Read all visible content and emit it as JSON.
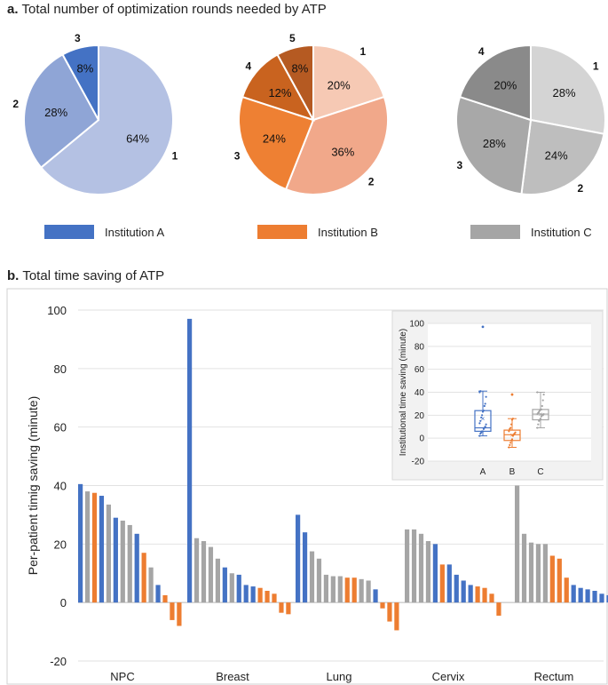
{
  "panel_a": {
    "label": "a.",
    "title": "Total number of optimization rounds needed by ATP"
  },
  "panel_b": {
    "label": "b.",
    "title": "Total time saving of ATP"
  },
  "colors": {
    "A": "#4472C4",
    "B": "#ED7D31",
    "C": "#A5A5A5",
    "pieA": [
      "#B4C1E3",
      "#8FA5D6",
      "#4472C4"
    ],
    "pieB": [
      "#F6C9B4",
      "#F1A88A",
      "#EE8033",
      "#C9631F",
      "#B55A22"
    ],
    "pieC": [
      "#D4D4D4",
      "#BEBEBE",
      "#A8A8A8",
      "#8A8A8A"
    ]
  },
  "chart_data": [
    {
      "type": "pie",
      "name": "Institution A",
      "labels": [
        "1",
        "2",
        "3"
      ],
      "values": [
        64,
        28,
        8
      ],
      "value_labels": [
        "64%",
        "28%",
        "8%"
      ]
    },
    {
      "type": "pie",
      "name": "Institution B",
      "labels": [
        "1",
        "2",
        "3",
        "4",
        "5"
      ],
      "values": [
        20,
        36,
        24,
        12,
        8
      ],
      "value_labels": [
        "20%",
        "36%",
        "24%",
        "12%",
        "8%"
      ]
    },
    {
      "type": "pie",
      "name": "Institution C",
      "labels": [
        "1",
        "2",
        "3",
        "4"
      ],
      "values": [
        28,
        24,
        28,
        20
      ],
      "value_labels": [
        "28%",
        "24%",
        "28%",
        "20%"
      ]
    },
    {
      "type": "bar",
      "ylabel": "Per-patient timig saving (minute)",
      "ylim": [
        -20,
        100
      ],
      "yticks": [
        "100",
        "80",
        "60",
        "40",
        "20",
        "0",
        "-20"
      ],
      "categories": [
        "NPC",
        "Breast",
        "Lung",
        "Cervix",
        "Rectum"
      ],
      "groups": [
        {
          "name": "NPC",
          "values": [
            40.5,
            38,
            37.5,
            36.5,
            33.5,
            29,
            28,
            26.5,
            23.5,
            17,
            12,
            6,
            2.5,
            -6,
            -8
          ],
          "inst": [
            "A",
            "C",
            "B",
            "A",
            "C",
            "A",
            "C",
            "C",
            "A",
            "B",
            "C",
            "A",
            "B",
            "B",
            "B"
          ]
        },
        {
          "name": "Breast",
          "values": [
            97,
            22,
            21,
            19,
            15,
            12,
            10,
            9.5,
            6,
            5.5,
            5,
            4,
            3,
            -3.5,
            -4
          ],
          "inst": [
            "A",
            "C",
            "C",
            "C",
            "C",
            "A",
            "C",
            "A",
            "A",
            "A",
            "B",
            "B",
            "B",
            "B",
            "B"
          ]
        },
        {
          "name": "Lung",
          "values": [
            30,
            24,
            17.5,
            15,
            9.5,
            9,
            9,
            8.5,
            8.5,
            8,
            7.5,
            4.5,
            -2,
            -6.5,
            -9.5
          ],
          "inst": [
            "A",
            "A",
            "C",
            "C",
            "C",
            "C",
            "C",
            "B",
            "B",
            "C",
            "C",
            "A",
            "B",
            "B",
            "B"
          ]
        },
        {
          "name": "Cervix",
          "values": [
            25,
            25,
            23.5,
            21,
            20,
            13,
            13,
            9.5,
            7.5,
            6,
            5.5,
            5,
            3,
            -4.5
          ],
          "inst": [
            "C",
            "C",
            "C",
            "C",
            "A",
            "B",
            "A",
            "A",
            "A",
            "A",
            "B",
            "B",
            "B",
            "B"
          ]
        },
        {
          "name": "Rectum",
          "values": [
            40,
            23.5,
            20.5,
            20,
            20,
            16,
            15,
            8.5,
            6,
            5,
            4.5,
            4,
            3,
            2.5,
            2,
            1.5
          ],
          "inst": [
            "C",
            "C",
            "C",
            "C",
            "C",
            "B",
            "B",
            "B",
            "A",
            "A",
            "A",
            "A",
            "A",
            "A",
            "B",
            "B"
          ]
        }
      ]
    },
    {
      "type": "box",
      "ylabel": "Institutional time saving (minute)",
      "ylim": [
        -20,
        100
      ],
      "yticks": [
        "100",
        "80",
        "60",
        "40",
        "20",
        "0",
        "-20"
      ],
      "categories": [
        "A",
        "B",
        "C"
      ],
      "boxes": [
        {
          "name": "A",
          "min": 2,
          "q1": 6,
          "median": 9,
          "q3": 24,
          "max": 41,
          "mean": 17,
          "points": [
            2,
            4,
            5,
            6,
            6,
            8,
            9,
            10,
            12,
            13,
            15,
            18,
            20,
            23,
            24,
            28,
            30,
            36,
            40,
            41
          ],
          "outliers": [
            97
          ]
        },
        {
          "name": "B",
          "min": -8,
          "q1": -2,
          "median": 3,
          "q3": 7,
          "max": 17,
          "mean": 3,
          "points": [
            -8,
            -6,
            -4,
            -2,
            -1,
            2,
            3,
            4,
            5,
            6,
            8,
            9,
            12,
            16,
            17
          ],
          "outliers": [
            38
          ]
        },
        {
          "name": "C",
          "min": 9,
          "q1": 16,
          "median": 21,
          "q3": 25,
          "max": 40,
          "mean": 21,
          "points": [
            9,
            12,
            15,
            16,
            17,
            19,
            20,
            20,
            21,
            21,
            22,
            23,
            24,
            25,
            25,
            28,
            33,
            38,
            40
          ],
          "outliers": []
        }
      ]
    }
  ],
  "legend": [
    {
      "key": "A",
      "label": "Institution A"
    },
    {
      "key": "B",
      "label": "Institution B"
    },
    {
      "key": "C",
      "label": "Institution C"
    }
  ]
}
